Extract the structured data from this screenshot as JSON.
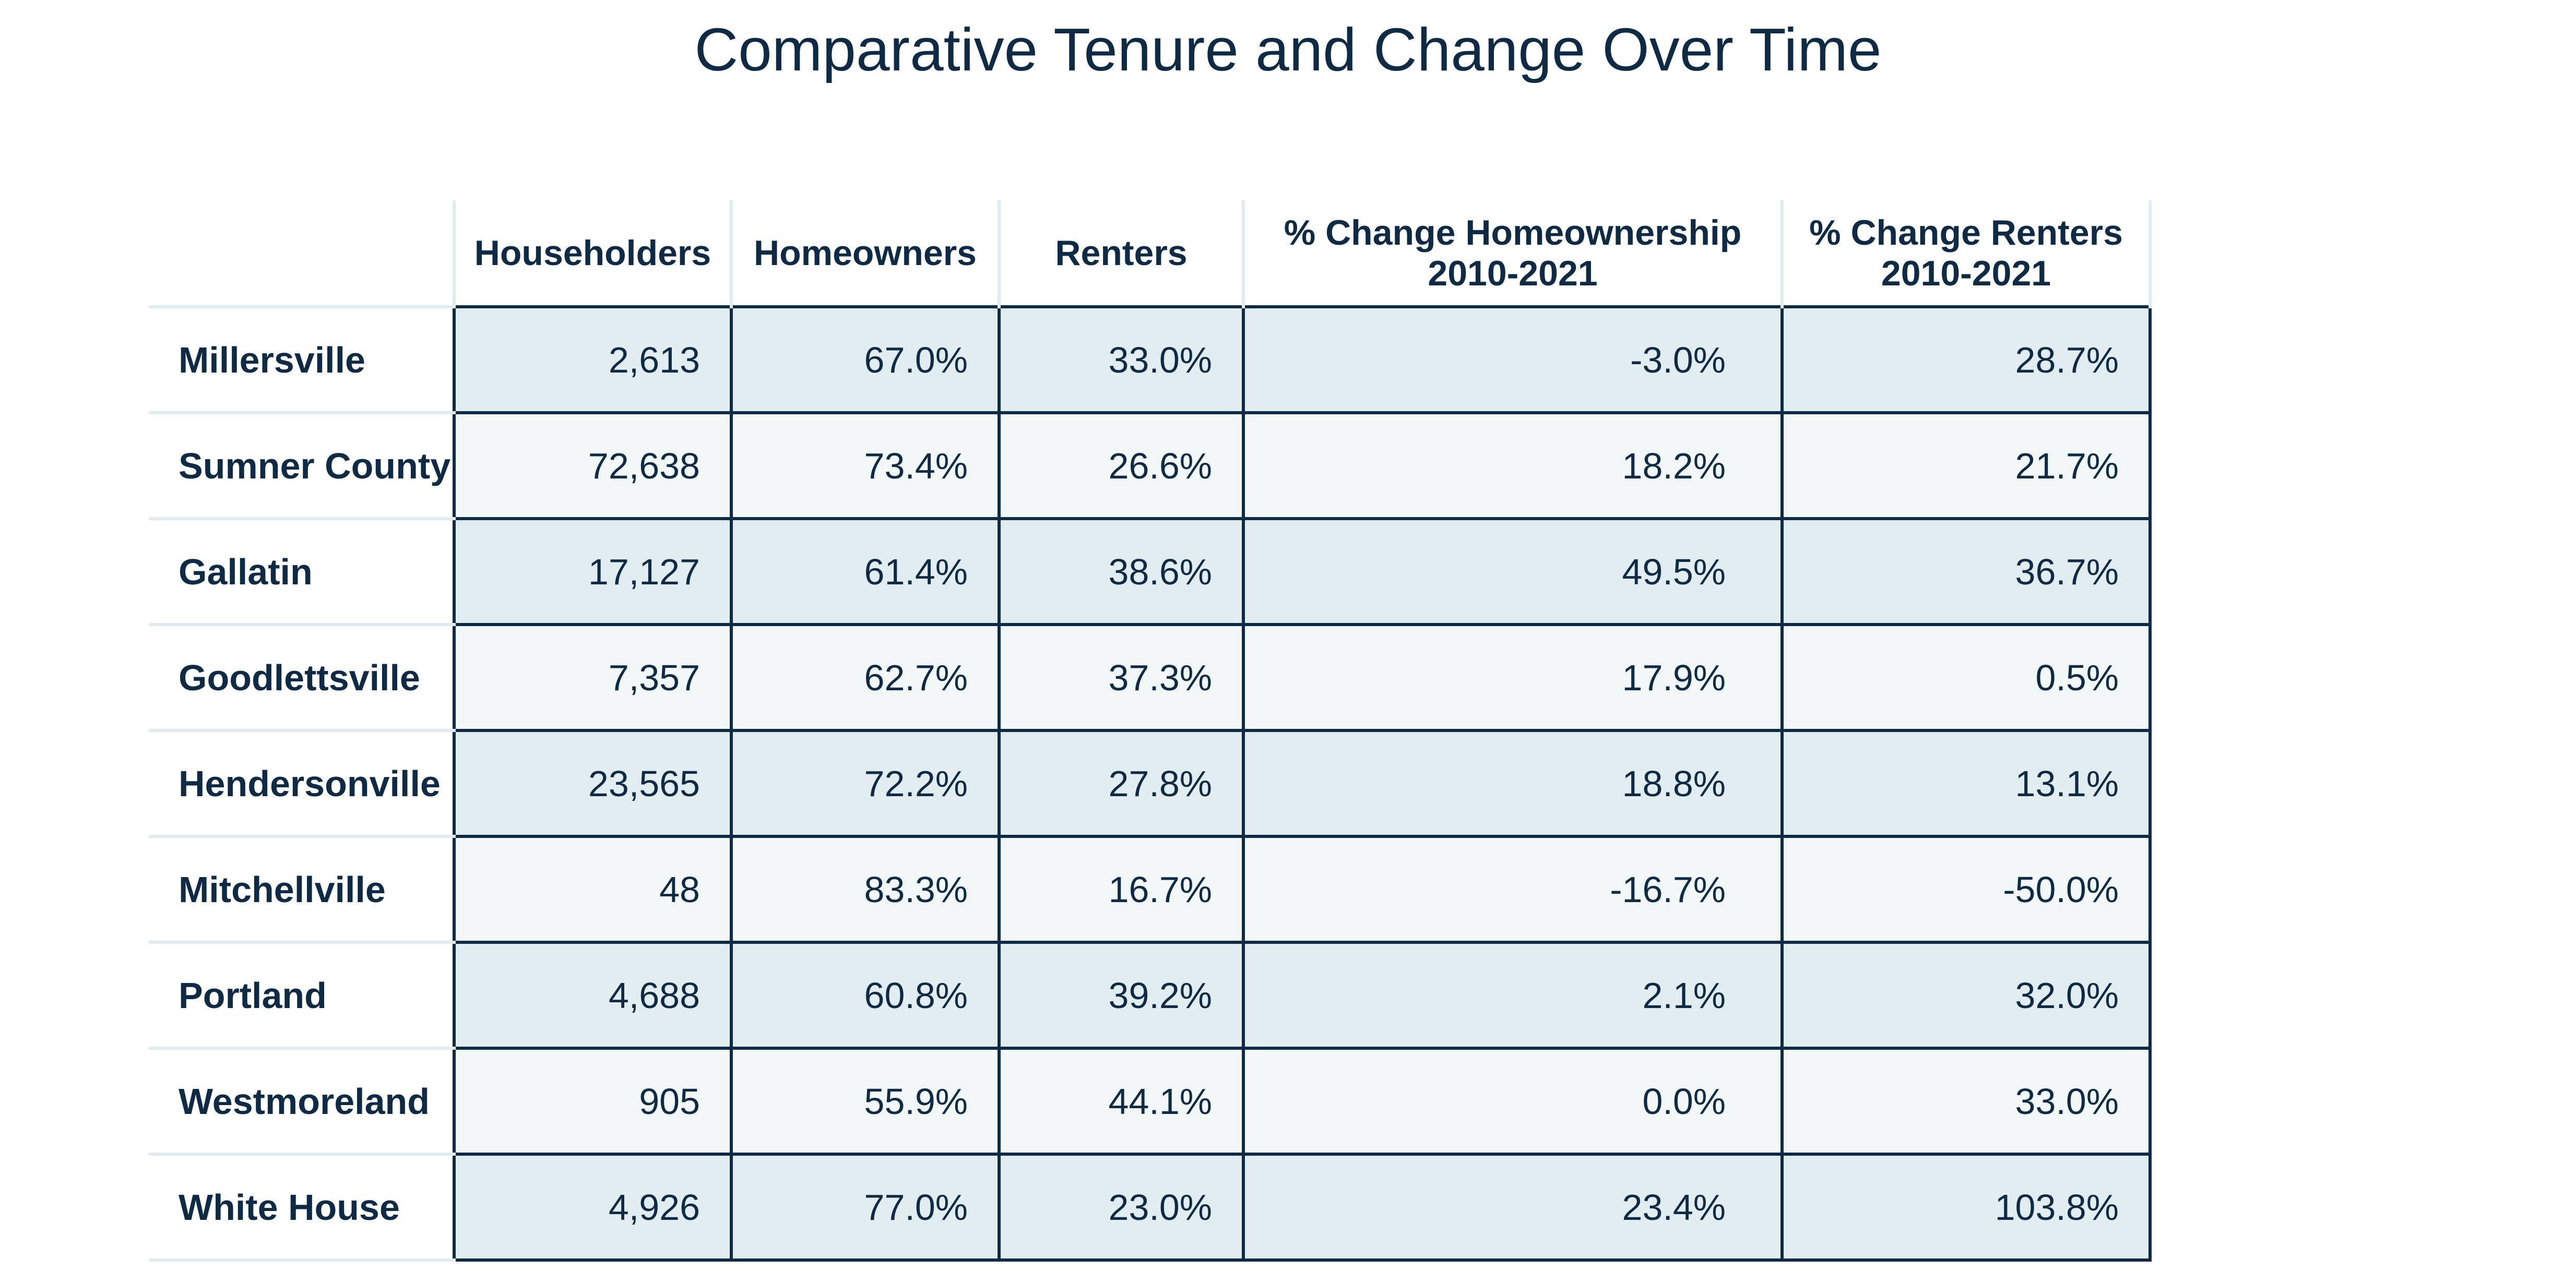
{
  "title": "Comparative Tenure and Change Over Time",
  "colors": {
    "text": "#0f2a44",
    "band_odd": "#e1edf1",
    "band_even": "#f2f8f8",
    "border": "#0f2a44",
    "header_rule": "#e1ecef"
  },
  "chart_data": {
    "type": "table",
    "title": "Comparative Tenure and Change Over Time",
    "columns": [
      {
        "line1": "",
        "line2": ""
      },
      {
        "line1": "Householders",
        "line2": ""
      },
      {
        "line1": "Homeowners",
        "line2": ""
      },
      {
        "line1": "Renters",
        "line2": ""
      },
      {
        "line1": "% Change Homeownership",
        "line2": "2010-2021"
      },
      {
        "line1": "% Change Renters",
        "line2": "2010-2021"
      }
    ],
    "rows": [
      {
        "name": "Millersville",
        "householders": "2,613",
        "homeowners": "67.0%",
        "renters": "33.0%",
        "change_homeownership": "-3.0%",
        "change_renters": "28.7%"
      },
      {
        "name": "Sumner County",
        "householders": "72,638",
        "homeowners": "73.4%",
        "renters": "26.6%",
        "change_homeownership": "18.2%",
        "change_renters": "21.7%"
      },
      {
        "name": "Gallatin",
        "householders": "17,127",
        "homeowners": "61.4%",
        "renters": "38.6%",
        "change_homeownership": "49.5%",
        "change_renters": "36.7%"
      },
      {
        "name": "Goodlettsville",
        "householders": "7,357",
        "homeowners": "62.7%",
        "renters": "37.3%",
        "change_homeownership": "17.9%",
        "change_renters": "0.5%"
      },
      {
        "name": "Hendersonville",
        "householders": "23,565",
        "homeowners": "72.2%",
        "renters": "27.8%",
        "change_homeownership": "18.8%",
        "change_renters": "13.1%"
      },
      {
        "name": "Mitchellville",
        "householders": "48",
        "homeowners": "83.3%",
        "renters": "16.7%",
        "change_homeownership": "-16.7%",
        "change_renters": "-50.0%"
      },
      {
        "name": "Portland",
        "householders": "4,688",
        "homeowners": "60.8%",
        "renters": "39.2%",
        "change_homeownership": "2.1%",
        "change_renters": "32.0%"
      },
      {
        "name": "Westmoreland",
        "householders": "905",
        "homeowners": "55.9%",
        "renters": "44.1%",
        "change_homeownership": "0.0%",
        "change_renters": "33.0%"
      },
      {
        "name": "White House",
        "householders": "4,926",
        "homeowners": "77.0%",
        "renters": "23.0%",
        "change_homeownership": "23.4%",
        "change_renters": "103.8%"
      }
    ]
  }
}
